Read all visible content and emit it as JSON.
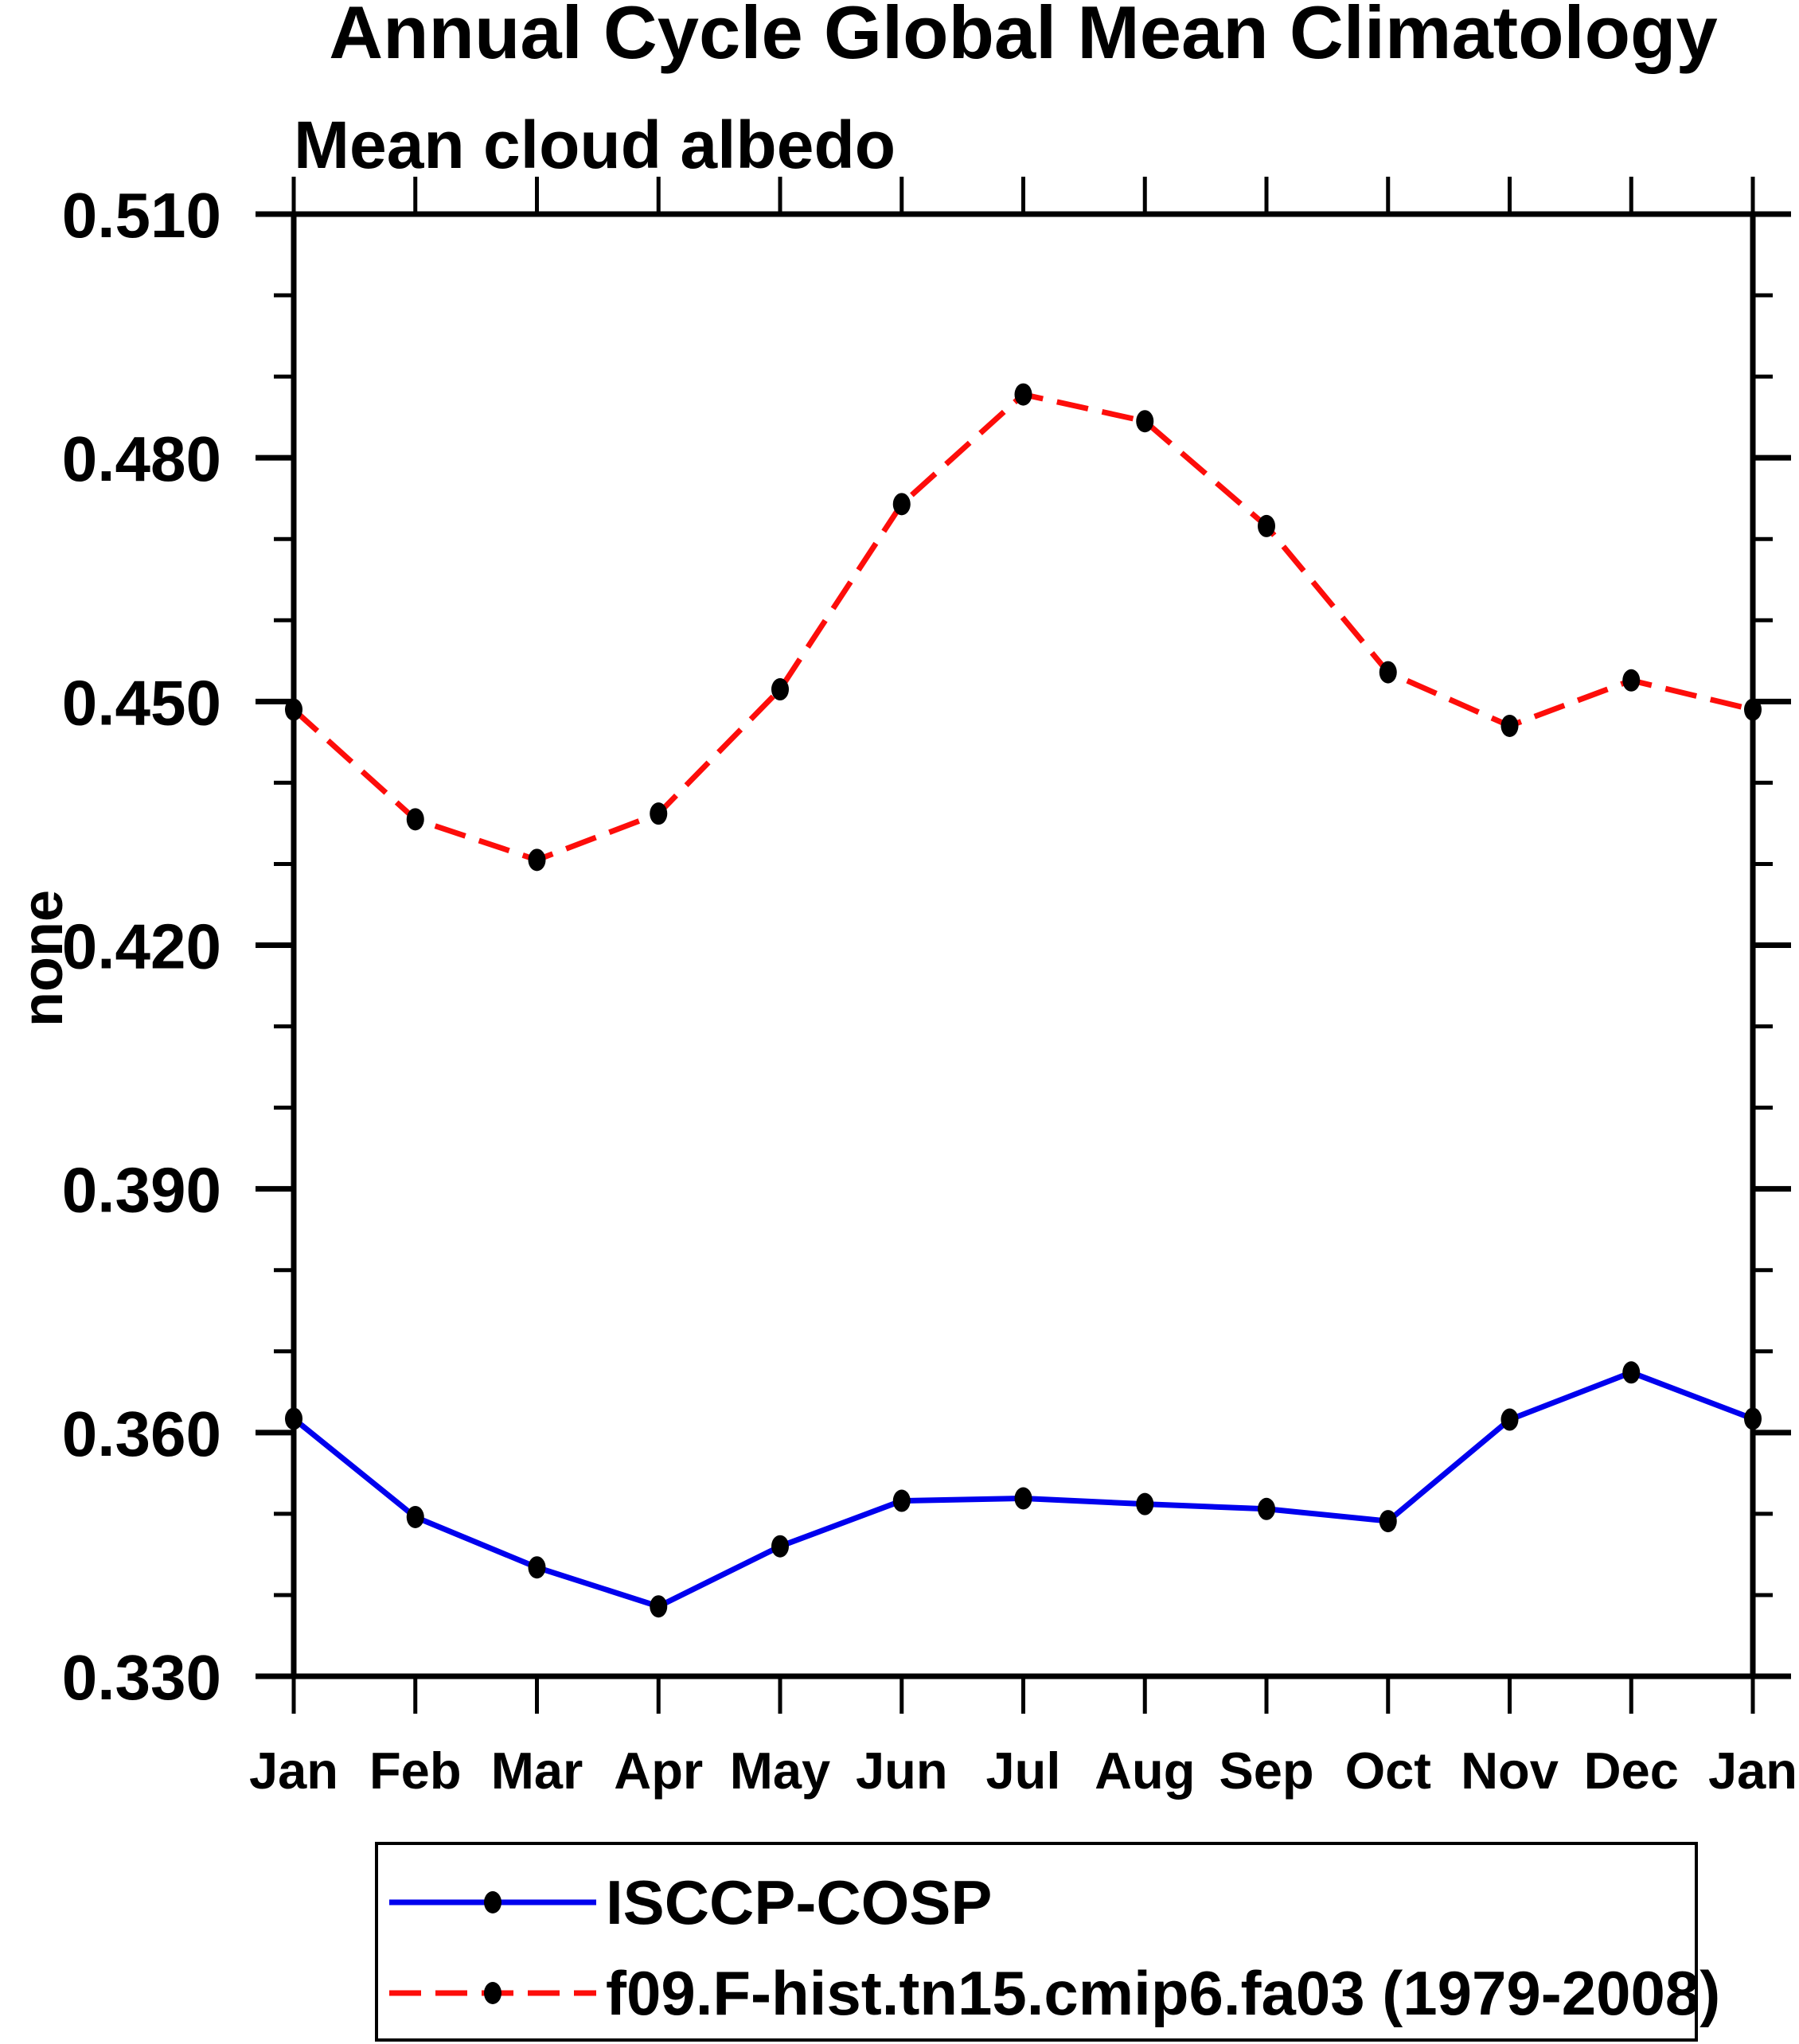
{
  "page": {
    "background_color": "#ffffff",
    "text_color": "#000000"
  },
  "header": {
    "title": "Annual Cycle Global Mean Climatology",
    "subtitle": "Mean cloud albedo"
  },
  "chart_data": {
    "type": "line",
    "title": "Annual Cycle Global Mean Climatology",
    "subtitle": "Mean cloud albedo",
    "xlabel": "",
    "ylabel": "none",
    "categories": [
      "Jan",
      "Feb",
      "Mar",
      "Apr",
      "May",
      "Jun",
      "Jul",
      "Aug",
      "Sep",
      "Oct",
      "Nov",
      "Dec",
      "Jan"
    ],
    "series": [
      {
        "name": "ISCCP-COSP",
        "color": "#0000ee",
        "line_style": "solid",
        "line_width": 7,
        "marker": "filled-circle",
        "marker_color": "#000000",
        "values": [
          0.3617,
          0.3496,
          0.3434,
          0.3386,
          0.346,
          0.3516,
          0.3519,
          0.3512,
          0.3506,
          0.3491,
          0.3616,
          0.3674,
          0.3617
        ]
      },
      {
        "name": "f09.F-hist.tn15.cmip6.fa03 (1979-2008)",
        "color": "#fd0d0a",
        "line_style": "dashed",
        "line_width": 7,
        "marker": "filled-circle",
        "marker_color": "#000000",
        "values": [
          0.449,
          0.4355,
          0.4305,
          0.4362,
          0.4515,
          0.4743,
          0.4878,
          0.4845,
          0.4716,
          0.4536,
          0.447,
          0.4526,
          0.449
        ]
      }
    ],
    "ylim": [
      0.33,
      0.51
    ],
    "y_major_tick_labels": [
      "0.330",
      "0.360",
      "0.390",
      "0.420",
      "0.450",
      "0.480",
      "0.510"
    ],
    "y_major_step": 0.03,
    "y_minor_step": 0.01,
    "grid": false,
    "axis_color": "#000000",
    "tick_direction": "out",
    "legend_position": "bottom"
  },
  "legend": {
    "entries": [
      {
        "label": "ISCCP-COSP"
      },
      {
        "label": "f09.F-hist.tn15.cmip6.fa03 (1979-2008)"
      }
    ]
  }
}
